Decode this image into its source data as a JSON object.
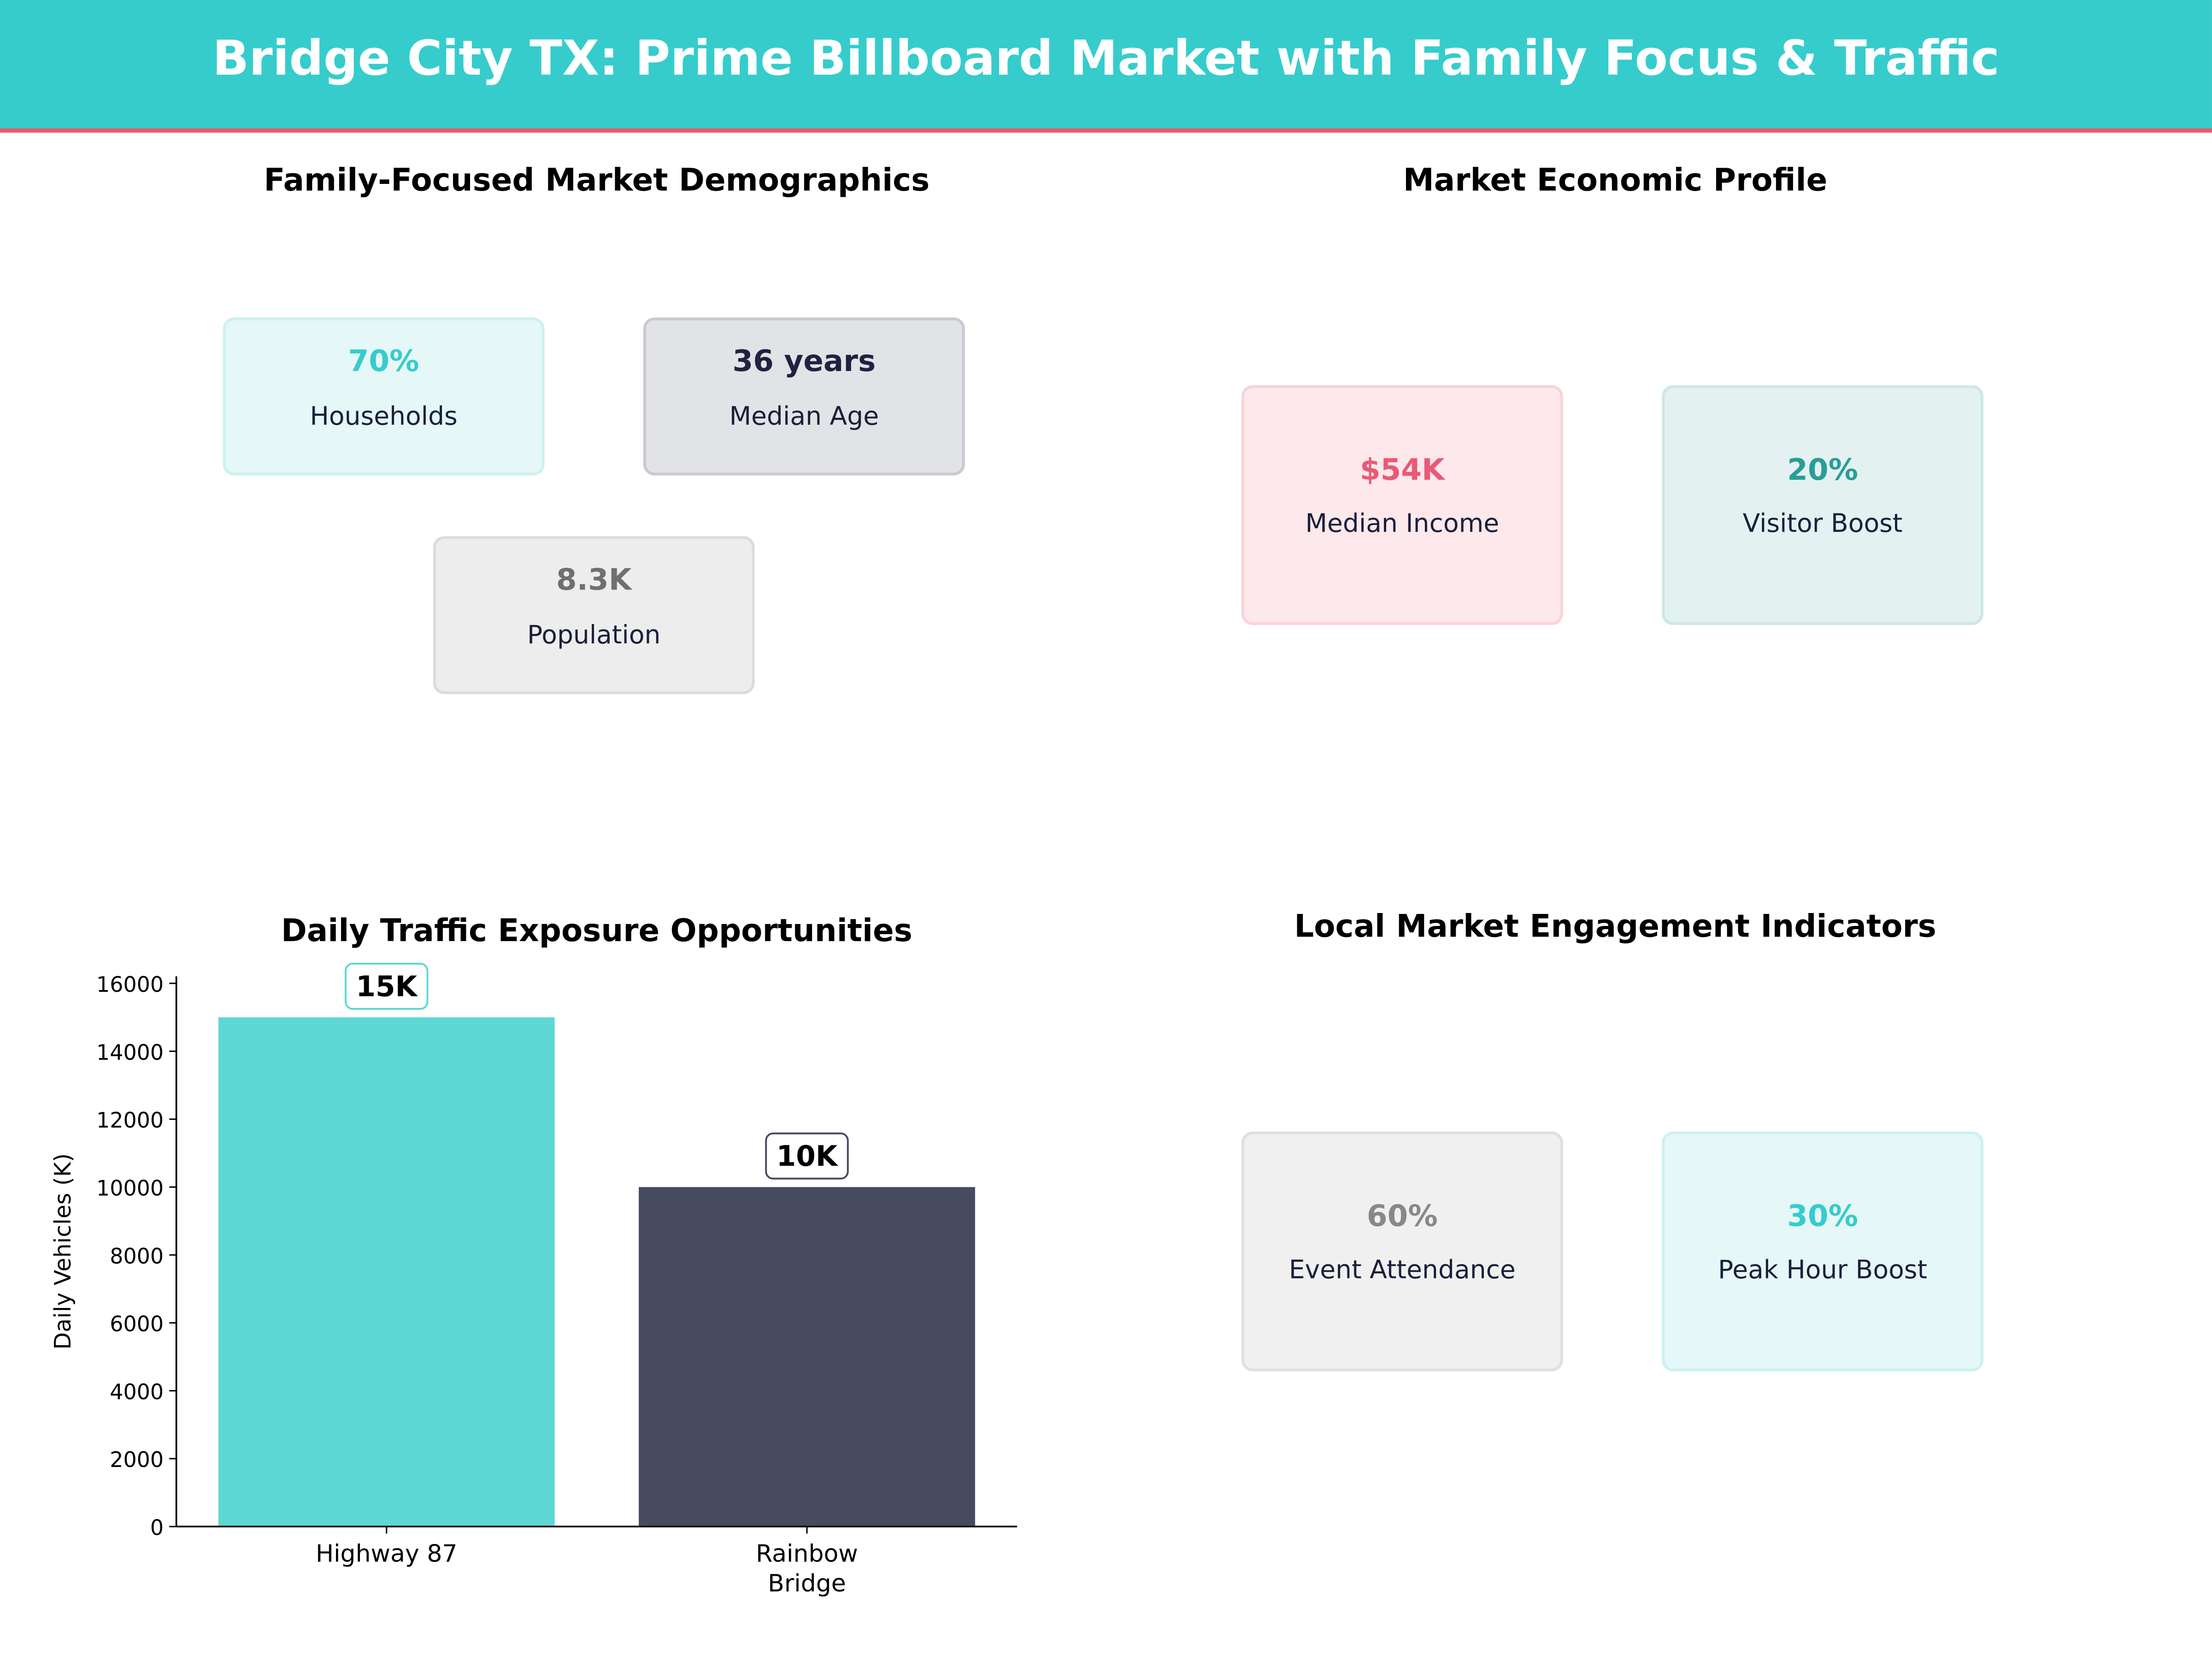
{
  "header": {
    "title": "Bridge City TX: Prime Billboard Market with Family Focus & Traffic",
    "bg_color": "#36CCCC",
    "accent_color": "#E85A6E"
  },
  "demographics": {
    "title": "Family-Focused Market Demographics",
    "cards": [
      {
        "value": "70%",
        "label": "Households",
        "color": "#36CCCC"
      },
      {
        "value": "36 years",
        "label": "Median Age",
        "color": "#1F2340"
      },
      {
        "value": "8.3K",
        "label": "Population",
        "color": "#707070"
      }
    ]
  },
  "economic": {
    "title": "Market Economic Profile",
    "cards": [
      {
        "value": "$54K",
        "label": "Median Income",
        "color": "#E85A75"
      },
      {
        "value": "20%",
        "label": "Visitor Boost",
        "color": "#2A9D96"
      }
    ]
  },
  "engagement": {
    "title": "Local Market Engagement Indicators",
    "cards": [
      {
        "value": "60%",
        "label": "Event Attendance",
        "color": "#888888"
      },
      {
        "value": "30%",
        "label": "Peak Hour Boost",
        "color": "#36CCCC"
      }
    ]
  },
  "chart_data": {
    "type": "bar",
    "title": "Daily Traffic Exposure Opportunities",
    "xlabel": "",
    "ylabel": "Daily Vehicles (K)",
    "categories": [
      "Highway 87",
      "Rainbow\nBridge"
    ],
    "category_lines": [
      [
        "Highway 87"
      ],
      [
        "Rainbow",
        "Bridge"
      ]
    ],
    "values": [
      15000,
      10000
    ],
    "data_labels": [
      "15K",
      "10K"
    ],
    "colors": [
      "#5DD8D4",
      "#464B60"
    ],
    "ylim": [
      0,
      16000
    ],
    "yticks": [
      0,
      2000,
      4000,
      6000,
      8000,
      10000,
      12000,
      14000,
      16000
    ],
    "grid": false
  }
}
